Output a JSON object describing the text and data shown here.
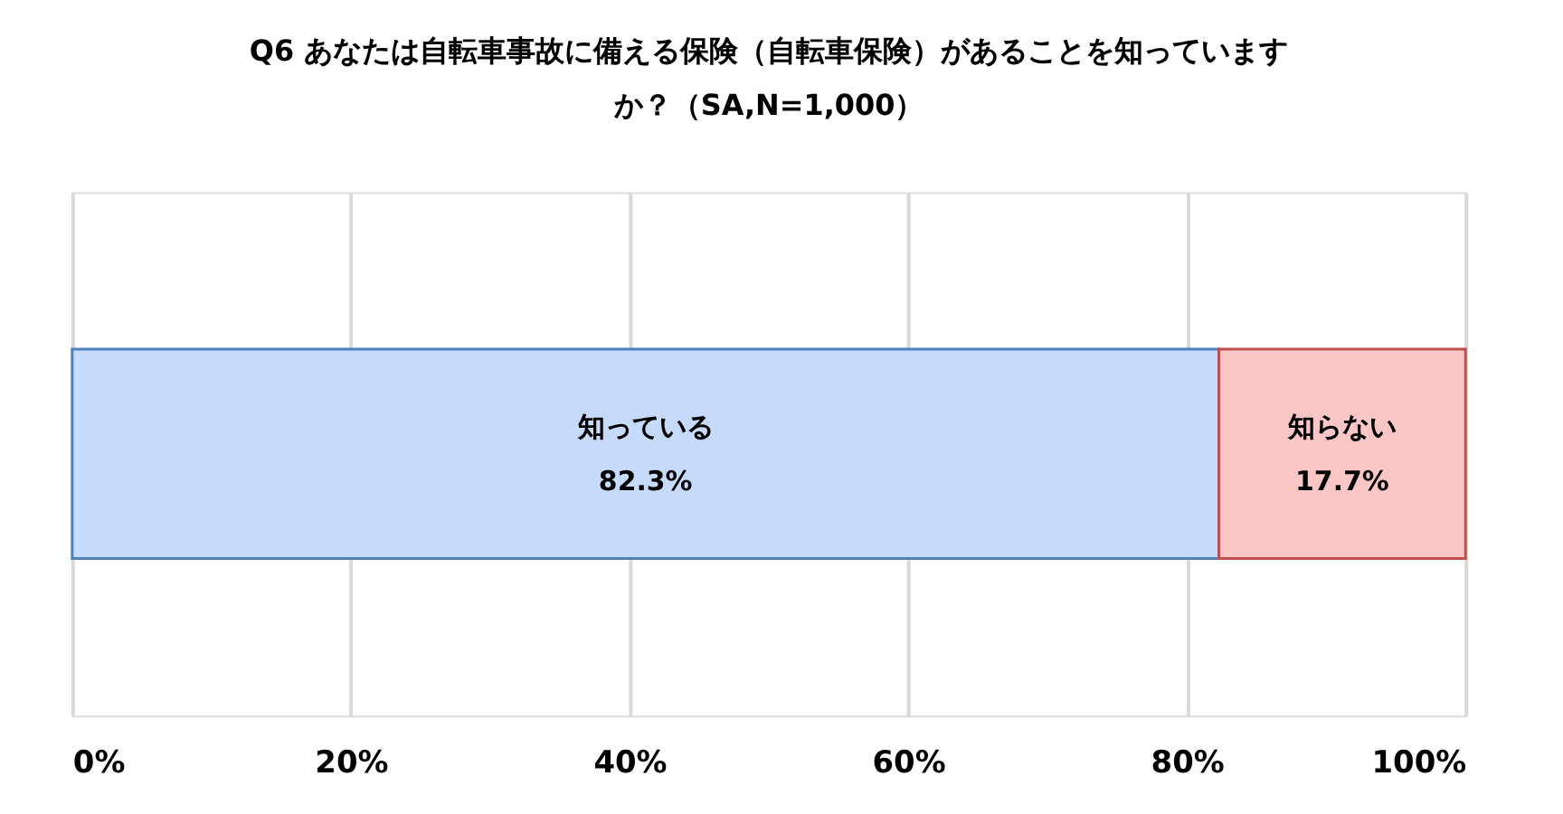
{
  "chart_data": {
    "type": "bar",
    "orientation": "horizontal",
    "stacked": true,
    "title": "Q6 あなたは自転車事故に備える保険（自転車保険）があることを知っていますか？（SA,N=1,000）",
    "categories": [
      null
    ],
    "series": [
      {
        "name": "知っている",
        "color": "#c6dafb",
        "values": [
          82.3
        ],
        "value_labels": [
          "82.3%"
        ]
      },
      {
        "name": "知らない",
        "color": "#fbc6c6",
        "values": [
          17.7
        ],
        "value_labels": [
          "17.7%"
        ]
      }
    ],
    "xlim": [
      0,
      100
    ],
    "xticks": [
      {
        "value": 0,
        "label": "0%"
      },
      {
        "value": 20,
        "label": "20%"
      },
      {
        "value": 40,
        "label": "40%"
      },
      {
        "value": 60,
        "label": "60%"
      },
      {
        "value": 80,
        "label": "80%"
      },
      {
        "value": 100,
        "label": "100%"
      }
    ],
    "grid": "x"
  }
}
